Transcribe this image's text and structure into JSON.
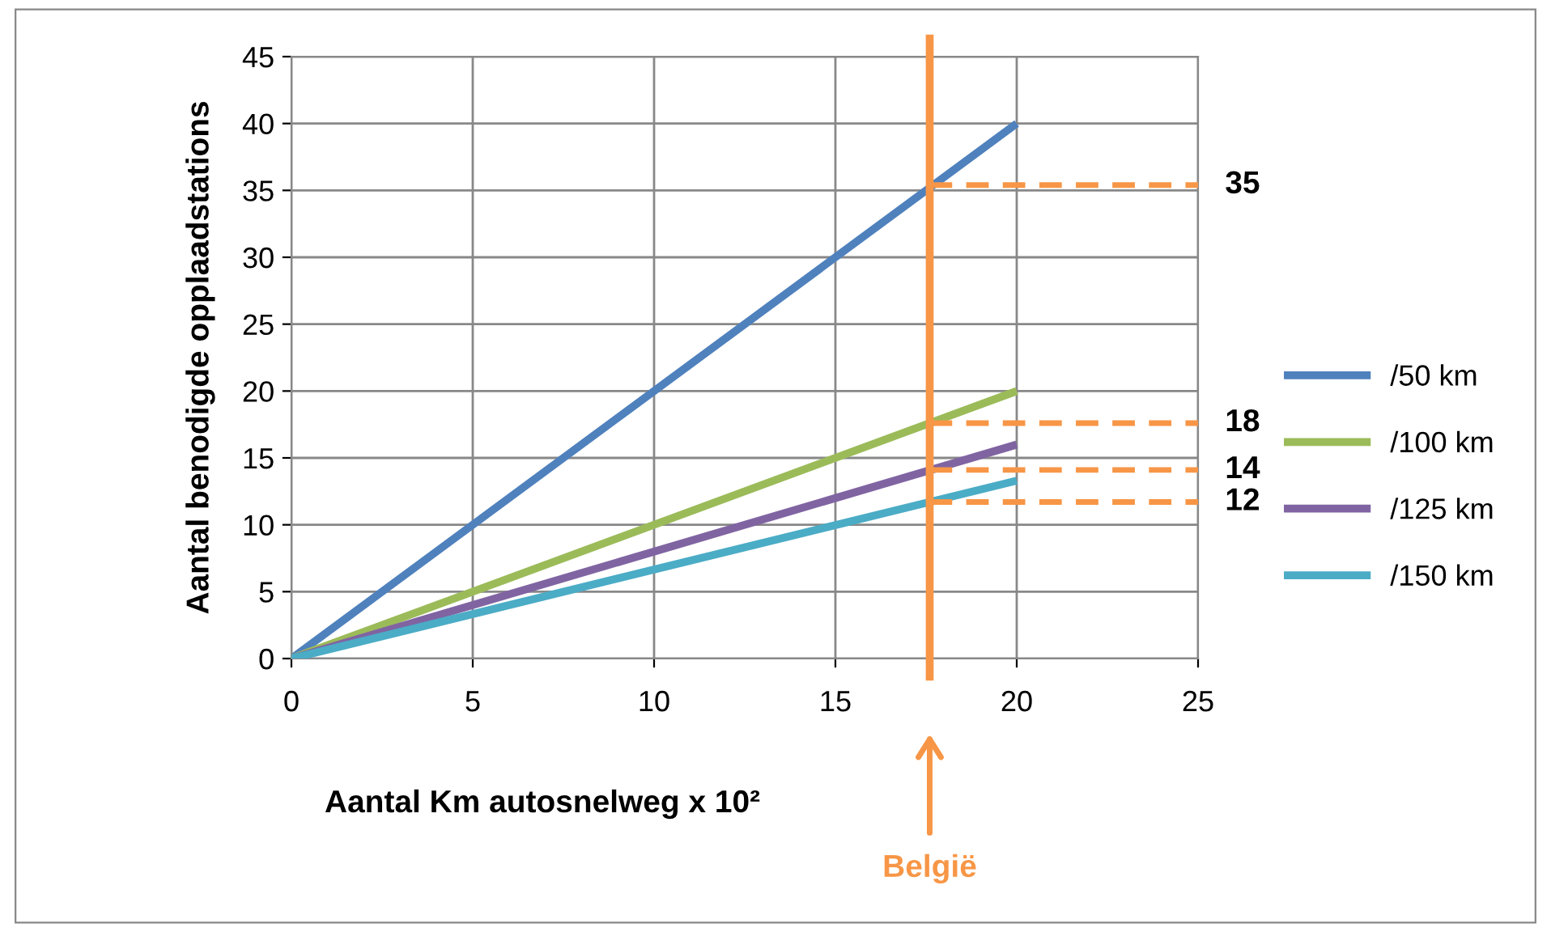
{
  "chart_data": {
    "type": "line",
    "xlabel": "Aantal Km autosnelweg x 10²",
    "ylabel": "Aantal benodigde opplaadstations",
    "xlim": [
      0,
      25
    ],
    "ylim": [
      0,
      45
    ],
    "xticks": [
      0,
      5,
      10,
      15,
      20,
      25
    ],
    "yticks": [
      0,
      5,
      10,
      15,
      20,
      25,
      30,
      35,
      40,
      45
    ],
    "grid": true,
    "legend": "right",
    "line_style": "solid",
    "marker": "none",
    "series": [
      {
        "name": "/50 km",
        "color": "#4f81bd",
        "x": [
          0,
          20
        ],
        "values": [
          0,
          40
        ]
      },
      {
        "name": "/100 km",
        "color": "#9bbb59",
        "x": [
          0,
          20
        ],
        "values": [
          0,
          20
        ]
      },
      {
        "name": "/125 km",
        "color": "#8064a2",
        "x": [
          0,
          20
        ],
        "values": [
          0,
          16
        ]
      },
      {
        "name": "/150 km",
        "color": "#4bacc6",
        "x": [
          0,
          20
        ],
        "values": [
          0,
          13.3
        ]
      },
      {
        "color": "#f79646",
        "x": [
          17.6,
          25
        ],
        "values": [
          35.4,
          35.4
        ],
        "line_style": "dashed",
        "value_labels": [
          null,
          "35"
        ]
      },
      {
        "color": "#f79646",
        "x": [
          17.6,
          25
        ],
        "values": [
          17.6,
          17.6
        ],
        "line_style": "dashed",
        "value_labels": [
          null,
          "18"
        ]
      },
      {
        "color": "#f79646",
        "x": [
          17.6,
          25
        ],
        "values": [
          14.1,
          14.1
        ],
        "line_style": "dashed",
        "value_labels": [
          null,
          "14"
        ]
      },
      {
        "color": "#f79646",
        "x": [
          17.6,
          25
        ],
        "values": [
          11.7,
          11.7
        ],
        "line_style": "dashed",
        "value_labels": [
          null,
          "12"
        ]
      }
    ],
    "ref_lines": [
      {
        "axis": "x",
        "value": 17.6,
        "label": "België",
        "color": "#f79646"
      }
    ]
  }
}
